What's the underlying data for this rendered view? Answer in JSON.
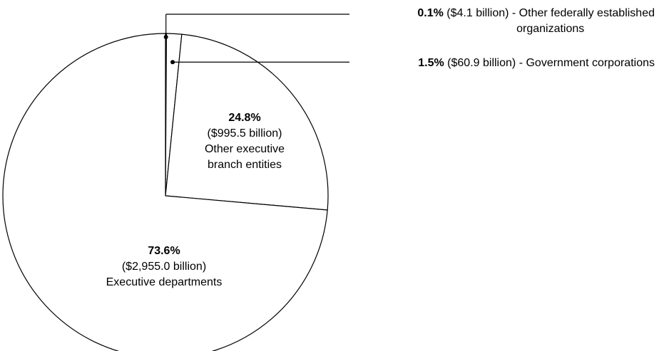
{
  "colors": {
    "background": "#ffffff",
    "slice_fill": "#ffffff",
    "line": "#000000"
  },
  "chart_data": {
    "type": "pie",
    "title": "",
    "start_angle": "12 o'clock",
    "direction": "clockwise",
    "slices": [
      {
        "label": "Other federally established organizations",
        "percent": 0.1,
        "amount": "$4.1 billion",
        "percent_text": "0.1%",
        "amount_text": "($4.1 billion)",
        "name_lines": [
          "Other federally established",
          "organizations"
        ],
        "callout": true
      },
      {
        "label": "Government corporations",
        "percent": 1.5,
        "amount": "$60.9 billion",
        "percent_text": "1.5%",
        "amount_text": "($60.9 billion)",
        "name_lines": [
          "Government corporations"
        ],
        "callout": true
      },
      {
        "label": "Other executive branch entities",
        "percent": 24.8,
        "amount": "$995.5 billion",
        "percent_text": "24.8%",
        "amount_text": "($995.5 billion)",
        "name_lines": [
          "Other executive",
          "branch entities"
        ],
        "callout": false
      },
      {
        "label": "Executive departments",
        "percent": 73.6,
        "amount": "$2,955.0 billion",
        "percent_text": "73.6%",
        "amount_text": "($2,955.0 billion)",
        "name_lines": [
          "Executive departments"
        ],
        "callout": false
      }
    ]
  }
}
